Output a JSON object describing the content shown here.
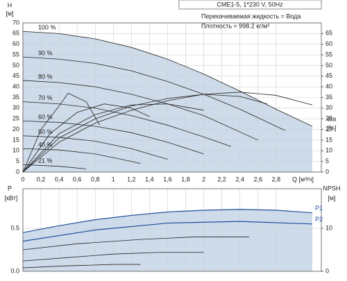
{
  "chart_data": [
    {
      "type": "line",
      "ylabel": "H",
      "yunit": "[м]",
      "y2label": "eta",
      "y2unit": "[%]",
      "xlabel": "Q [м³/ч]",
      "title": "CME1-5, 1*230 V, 50Hz",
      "notes": [
        "Перекачиваемая жидкость = Вода",
        "Плотность = 998.2 кг/м³"
      ],
      "xlim": [
        0,
        3.3
      ],
      "ylim": [
        0,
        70
      ],
      "y2lim": [
        0,
        70
      ],
      "grid": true,
      "fill_color": "#cddbea",
      "xticks": [
        0,
        {
          "value": 0.2,
          "label": "0,2"
        },
        {
          "value": 0.4,
          "label": "0,4"
        },
        {
          "value": 0.6,
          "label": "0,6"
        },
        {
          "value": 0.8,
          "label": "0,8"
        },
        1,
        {
          "value": 1.2,
          "label": "1,2"
        },
        {
          "value": 1.4,
          "label": "1,4"
        },
        {
          "value": 1.6,
          "label": "1,6"
        },
        {
          "value": 1.8,
          "label": "1,8"
        },
        2,
        {
          "value": 2.2,
          "label": "2,2"
        },
        {
          "value": 2.4,
          "label": "2,4"
        },
        {
          "value": 2.6,
          "label": "2,6"
        },
        {
          "value": 2.8,
          "label": "2,8"
        }
      ],
      "yticks": [
        0,
        5,
        10,
        15,
        20,
        25,
        30,
        35,
        40,
        45,
        50,
        55,
        60,
        65,
        70
      ],
      "y2ticks": [
        0,
        5,
        10,
        15,
        20,
        25,
        30,
        35,
        40,
        45,
        50,
        55,
        60,
        65
      ],
      "series": [
        {
          "name": "100 %",
          "color": "#222222",
          "fill": true,
          "x": [
            0,
            0.4,
            0.8,
            1.2,
            1.6,
            2.0,
            2.4,
            2.8,
            3.2
          ],
          "values": [
            66,
            65,
            62.5,
            58.5,
            53,
            46,
            38,
            29.5,
            21.5
          ]
        },
        {
          "name": "90 %",
          "color": "#222222",
          "x": [
            0,
            0.4,
            0.8,
            1.2,
            1.6,
            2.0,
            2.4,
            2.9
          ],
          "values": [
            54,
            53,
            51,
            47.5,
            42.5,
            36.5,
            29.5,
            19.5
          ]
        },
        {
          "name": "80 %",
          "color": "#222222",
          "x": [
            0,
            0.4,
            0.8,
            1.2,
            1.6,
            2.0,
            2.6
          ],
          "values": [
            43,
            42,
            40,
            36.5,
            32,
            26.5,
            15
          ]
        },
        {
          "name": "70 %",
          "color": "#222222",
          "x": [
            0,
            0.4,
            0.8,
            1.2,
            1.6,
            2.0,
            2.3
          ],
          "values": [
            33,
            32,
            30,
            26.5,
            22,
            16.5,
            12
          ]
        },
        {
          "name": "60 %",
          "color": "#222222",
          "x": [
            0,
            0.4,
            0.8,
            1.2,
            1.6,
            2.0
          ],
          "values": [
            24,
            23.3,
            21.5,
            18.5,
            14,
            8.5
          ]
        },
        {
          "name": "50 %",
          "color": "#222222",
          "x": [
            0,
            0.4,
            0.8,
            1.2,
            1.6
          ],
          "values": [
            17,
            16.3,
            14.5,
            11,
            6
          ]
        },
        {
          "name": "40 %",
          "color": "#222222",
          "x": [
            0,
            0.4,
            0.8,
            1.2,
            1.3
          ],
          "values": [
            11,
            10.4,
            8.5,
            5,
            4
          ]
        },
        {
          "name": "21 %",
          "color": "#222222",
          "x": [
            0,
            0.4,
            0.7
          ],
          "values": [
            3.5,
            2.7,
            1.5
          ]
        },
        {
          "color": "#222222",
          "axis": "y2",
          "x": [
            0,
            0.4,
            0.8,
            1.2,
            1.6,
            2.0,
            2.4,
            2.8,
            3.2
          ],
          "values": [
            0,
            14,
            23,
            29,
            33.5,
            36.5,
            37.5,
            36,
            31.5
          ]
        },
        {
          "color": "#222222",
          "axis": "y2",
          "x": [
            0,
            0.4,
            0.8,
            1.2,
            1.6,
            2.0,
            2.4,
            2.7
          ],
          "values": [
            0,
            16,
            25,
            31,
            34.5,
            36.5,
            35.5,
            32
          ]
        },
        {
          "color": "#222222",
          "axis": "y2",
          "x": [
            0,
            0.4,
            0.8,
            1.2,
            1.6,
            2.0
          ],
          "values": [
            0,
            18,
            27,
            31.5,
            32,
            29
          ]
        },
        {
          "color": "#222222",
          "axis": "y2",
          "x": [
            0,
            0.3,
            0.6,
            0.9,
            1.2,
            1.4
          ],
          "values": [
            0,
            18,
            28,
            32,
            30,
            26
          ]
        },
        {
          "color": "#222222",
          "axis": "y2",
          "x": [
            0,
            0.2,
            0.4,
            0.5,
            0.7,
            0.85
          ],
          "values": [
            0,
            20,
            31,
            37,
            33,
            22
          ]
        }
      ]
    },
    {
      "type": "line",
      "ylabel": "P",
      "yunit": "[кВт]",
      "y2label": "NPSH",
      "y2unit": "[м]",
      "xlim": [
        0,
        3.3
      ],
      "ylim": [
        0,
        0.96
      ],
      "y2lim": [
        0,
        19.2
      ],
      "grid": true,
      "fill_color": "#cddbea",
      "xticks": [
        0,
        0.2,
        0.4,
        0.6,
        0.8,
        1,
        1.2,
        1.4,
        1.6,
        1.8,
        2,
        2.2,
        2.4,
        2.6,
        2.8
      ],
      "yticks": [
        {
          "value": 0,
          "label": "0.0"
        },
        0.5
      ],
      "y2ticks": [
        0,
        10
      ],
      "series": [
        {
          "name": "P1",
          "color": "#1f4e9c",
          "fill": true,
          "x": [
            0,
            0.4,
            0.8,
            1.2,
            1.6,
            2.0,
            2.4,
            2.8,
            3.2
          ],
          "values": [
            0.45,
            0.53,
            0.6,
            0.65,
            0.69,
            0.71,
            0.72,
            0.71,
            0.68
          ]
        },
        {
          "name": "P2",
          "color": "#1f4e9c",
          "x": [
            0,
            0.8,
            1.6,
            2.4,
            3.2
          ],
          "values": [
            0.35,
            0.48,
            0.56,
            0.58,
            0.55
          ]
        },
        {
          "color": "#222222",
          "x": [
            0,
            0.6,
            1.3,
            1.9,
            2.5
          ],
          "values": [
            0.25,
            0.32,
            0.37,
            0.4,
            0.4
          ]
        },
        {
          "color": "#222222",
          "x": [
            0,
            0.5,
            1.0,
            1.5,
            2.0
          ],
          "values": [
            0.12,
            0.16,
            0.2,
            0.22,
            0.22
          ]
        },
        {
          "color": "#222222",
          "x": [
            0,
            0.4,
            0.7,
            1.0,
            1.3
          ],
          "values": [
            0.04,
            0.06,
            0.07,
            0.08,
            0.08
          ]
        }
      ]
    }
  ]
}
